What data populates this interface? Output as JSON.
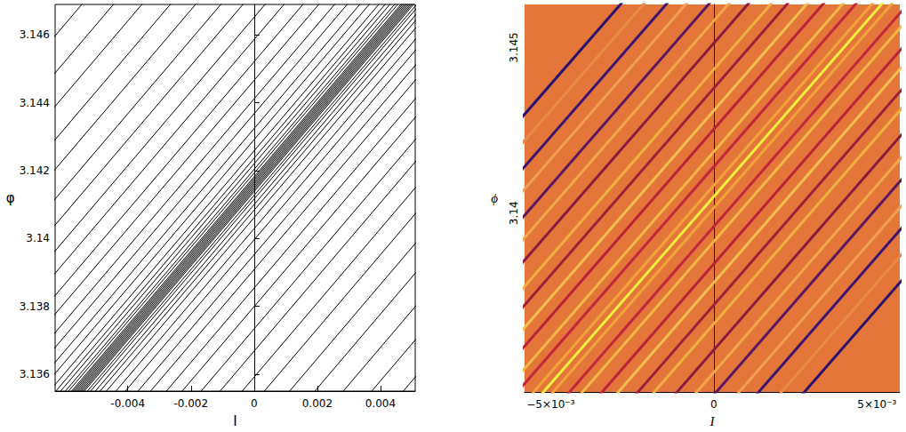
{
  "chart_data": [
    {
      "type": "line",
      "x_label": "I",
      "y_label": "φ",
      "xlim": [
        -0.0063,
        0.0051
      ],
      "ylim": [
        3.1355,
        3.1469
      ],
      "xticks": [
        -0.004,
        -0.002,
        0,
        0.002,
        0.004
      ],
      "yticks": [
        3.136,
        3.138,
        3.14,
        3.142,
        3.144,
        3.146
      ],
      "color": "#000000",
      "grid": false,
      "lines": [
        [
          [
            -0.0064,
            3.1346
          ],
          [
            0.0064,
            3.1486
          ]
        ],
        [
          [
            -0.00635,
            3.1346
          ],
          [
            0.00645,
            3.1486
          ]
        ],
        [
          [
            -0.00645,
            3.1346
          ],
          [
            0.00635,
            3.1486
          ]
        ],
        [
          [
            -0.0063,
            3.1346
          ],
          [
            0.0065,
            3.1486
          ]
        ],
        [
          [
            -0.0065,
            3.1346
          ],
          [
            0.0063,
            3.1486
          ]
        ],
        [
          [
            -0.00625,
            3.1346
          ],
          [
            0.00655,
            3.1486
          ]
        ],
        [
          [
            -0.00655,
            3.1346
          ],
          [
            0.00625,
            3.1486
          ]
        ],
        [
          [
            -0.0062,
            3.1346
          ],
          [
            0.0066,
            3.1486
          ]
        ],
        [
          [
            -0.0066,
            3.1346
          ],
          [
            0.0062,
            3.1486
          ]
        ],
        [
          [
            -0.0061,
            3.1346
          ],
          [
            0.0067,
            3.1486
          ]
        ],
        [
          [
            -0.0067,
            3.1346
          ],
          [
            0.0061,
            3.1486
          ]
        ],
        [
          [
            -0.006,
            3.1346
          ],
          [
            0.0068,
            3.1486
          ]
        ],
        [
          [
            -0.0068,
            3.1346
          ],
          [
            0.006,
            3.1486
          ]
        ],
        [
          [
            -0.00585,
            3.1346
          ],
          [
            0.00695,
            3.1486
          ]
        ],
        [
          [
            -0.00695,
            3.1346
          ],
          [
            0.00585,
            3.1486
          ]
        ],
        [
          [
            -0.0057,
            3.1346
          ],
          [
            0.0071,
            3.1486
          ]
        ],
        [
          [
            -0.0071,
            3.1346
          ],
          [
            0.0057,
            3.1486
          ]
        ],
        [
          [
            -0.0055,
            3.1346
          ],
          [
            0.0073,
            3.1486
          ]
        ],
        [
          [
            -0.0073,
            3.1346
          ],
          [
            0.0055,
            3.1486
          ]
        ],
        [
          [
            -0.0052,
            3.1346
          ],
          [
            0.0076,
            3.1486
          ]
        ],
        [
          [
            -0.0076,
            3.1346
          ],
          [
            0.0052,
            3.1486
          ]
        ],
        [
          [
            -0.0049,
            3.1346
          ],
          [
            0.0079,
            3.1486
          ]
        ],
        [
          [
            -0.0079,
            3.1346
          ],
          [
            0.0049,
            3.1486
          ]
        ],
        [
          [
            -0.0045,
            3.1346
          ],
          [
            0.0083,
            3.1486
          ]
        ],
        [
          [
            -0.0083,
            3.1346
          ],
          [
            0.0045,
            3.1486
          ]
        ],
        [
          [
            -0.0041,
            3.1346
          ],
          [
            0.0087,
            3.1486
          ]
        ],
        [
          [
            -0.0087,
            3.1346
          ],
          [
            0.0041,
            3.1486
          ]
        ],
        [
          [
            -0.0036,
            3.1346
          ],
          [
            0.0092,
            3.1486
          ]
        ],
        [
          [
            -0.0092,
            3.1346
          ],
          [
            0.0036,
            3.1486
          ]
        ],
        [
          [
            -0.0031,
            3.1346
          ],
          [
            0.0097,
            3.1486
          ]
        ],
        [
          [
            -0.0097,
            3.1346
          ],
          [
            0.0031,
            3.1486
          ]
        ],
        [
          [
            -0.0025,
            3.1346
          ],
          [
            0.0103,
            3.1486
          ]
        ],
        [
          [
            -0.0103,
            3.1346
          ],
          [
            0.0025,
            3.1486
          ]
        ],
        [
          [
            -0.0019,
            3.1346
          ],
          [
            0.0109,
            3.1486
          ]
        ],
        [
          [
            -0.0109,
            3.1346
          ],
          [
            0.0019,
            3.1486
          ]
        ],
        [
          [
            -0.0012,
            3.1346
          ],
          [
            0.0116,
            3.1486
          ]
        ],
        [
          [
            -0.0116,
            3.1346
          ],
          [
            0.0012,
            3.1486
          ]
        ],
        [
          [
            -0.0005,
            3.1346
          ],
          [
            0.0123,
            3.1486
          ]
        ],
        [
          [
            -0.0123,
            3.1346
          ],
          [
            0.0005,
            3.1486
          ]
        ],
        [
          [
            0.0003,
            3.1346
          ],
          [
            0.0131,
            3.1486
          ]
        ],
        [
          [
            -0.0131,
            3.1346
          ],
          [
            -0.0003,
            3.1486
          ]
        ],
        [
          [
            0.0011,
            3.1346
          ],
          [
            0.0139,
            3.1486
          ]
        ],
        [
          [
            -0.0139,
            3.1346
          ],
          [
            -0.0011,
            3.1486
          ]
        ],
        [
          [
            0.002,
            3.1346
          ],
          [
            0.0148,
            3.1486
          ]
        ],
        [
          [
            -0.0148,
            3.1346
          ],
          [
            -0.002,
            3.1486
          ]
        ],
        [
          [
            0.0029,
            3.1346
          ],
          [
            0.0157,
            3.1486
          ]
        ],
        [
          [
            -0.0157,
            3.1346
          ],
          [
            -0.0029,
            3.1486
          ]
        ],
        [
          [
            0.0039,
            3.1346
          ],
          [
            0.0167,
            3.1486
          ]
        ],
        [
          [
            -0.0167,
            3.1346
          ],
          [
            -0.0039,
            3.1486
          ]
        ],
        [
          [
            -0.0176,
            3.1346
          ],
          [
            -0.0048,
            3.1486
          ]
        ]
      ]
    },
    {
      "type": "line",
      "x_label": "I",
      "y_label": "ϕ",
      "xlim": [
        -0.0058,
        0.0057
      ],
      "ylim": [
        3.1346,
        3.1463
      ],
      "xticks": [
        {
          "value": -0.005,
          "label": "−5×10⁻³"
        },
        0,
        {
          "value": 0.005,
          "label": "5×10⁻³"
        }
      ],
      "yticks": [
        3.14,
        3.145
      ],
      "color": "#e4763a",
      "grid": false,
      "lines": [
        {
          "color": "#2a1070",
          "points": [
            [
              0.0018,
              3.1335
            ],
            [
              0.0142,
              3.1475
            ]
          ]
        },
        {
          "color": "#2a1070",
          "points": [
            [
              -0.0142,
              3.1335
            ],
            [
              -0.0018,
              3.1475
            ]
          ]
        },
        {
          "color": "#e88a4a",
          "points": [
            [
              0.0011,
              3.1335
            ],
            [
              0.0135,
              3.1475
            ]
          ]
        },
        {
          "color": "#e88a4a",
          "points": [
            [
              -0.0135,
              3.1335
            ],
            [
              -0.0011,
              3.1475
            ]
          ]
        },
        {
          "color": "#3a1470",
          "points": [
            [
              0.0004,
              3.1335
            ],
            [
              0.0128,
              3.1475
            ]
          ]
        },
        {
          "color": "#3a1470",
          "points": [
            [
              -0.0128,
              3.1335
            ],
            [
              -0.0004,
              3.1475
            ]
          ]
        },
        {
          "color": "#f0a050",
          "points": [
            [
              -0.0002,
              3.1335
            ],
            [
              0.0122,
              3.1475
            ]
          ]
        },
        {
          "color": "#f0a050",
          "points": [
            [
              -0.0122,
              3.1335
            ],
            [
              0.0002,
              3.1475
            ]
          ]
        },
        {
          "color": "#5a1660",
          "points": [
            [
              -0.0009,
              3.1335
            ],
            [
              0.0115,
              3.1475
            ]
          ]
        },
        {
          "color": "#5a1660",
          "points": [
            [
              -0.0115,
              3.1335
            ],
            [
              0.0009,
              3.1475
            ]
          ]
        },
        {
          "color": "#f0a848",
          "points": [
            [
              -0.0015,
              3.1335
            ],
            [
              0.0109,
              3.1475
            ]
          ]
        },
        {
          "color": "#f0a848",
          "points": [
            [
              -0.0109,
              3.1335
            ],
            [
              0.0015,
              3.1475
            ]
          ]
        },
        {
          "color": "#8a1a40",
          "points": [
            [
              -0.0021,
              3.1335
            ],
            [
              0.0103,
              3.1475
            ]
          ]
        },
        {
          "color": "#8a1a40",
          "points": [
            [
              -0.0103,
              3.1335
            ],
            [
              0.0021,
              3.1475
            ]
          ]
        },
        {
          "color": "#f0b040",
          "points": [
            [
              -0.0028,
              3.1335
            ],
            [
              0.0096,
              3.1475
            ]
          ]
        },
        {
          "color": "#f0b040",
          "points": [
            [
              -0.0096,
              3.1335
            ],
            [
              0.0028,
              3.1475
            ]
          ]
        },
        {
          "color": "#a01e3c",
          "points": [
            [
              -0.0033,
              3.1335
            ],
            [
              0.0091,
              3.1475
            ]
          ]
        },
        {
          "color": "#a01e3c",
          "points": [
            [
              -0.0091,
              3.1335
            ],
            [
              0.0033,
              3.1475
            ]
          ]
        },
        {
          "color": "#f2c14e",
          "points": [
            [
              -0.0039,
              3.1335
            ],
            [
              0.0085,
              3.1475
            ]
          ]
        },
        {
          "color": "#f2c14e",
          "points": [
            [
              -0.0085,
              3.1335
            ],
            [
              0.0039,
              3.1475
            ]
          ]
        },
        {
          "color": "#b8233a",
          "points": [
            [
              -0.0044,
              3.1335
            ],
            [
              0.008,
              3.1475
            ]
          ]
        },
        {
          "color": "#b8233a",
          "points": [
            [
              -0.008,
              3.1335
            ],
            [
              0.0044,
              3.1475
            ]
          ]
        },
        {
          "color": "#f3b845",
          "points": [
            [
              -0.005,
              3.1335
            ],
            [
              0.0074,
              3.1475
            ]
          ]
        },
        {
          "color": "#f3b845",
          "points": [
            [
              -0.0074,
              3.1335
            ],
            [
              0.005,
              3.1475
            ]
          ]
        },
        {
          "color": "#c2283c",
          "points": [
            [
              -0.0054,
              3.1335
            ],
            [
              0.007,
              3.1475
            ]
          ]
        },
        {
          "color": "#c2283c",
          "points": [
            [
              -0.007,
              3.1335
            ],
            [
              0.0054,
              3.1475
            ]
          ]
        },
        {
          "color": "#f2a23a",
          "points": [
            [
              -0.0059,
              3.1335
            ],
            [
              0.0065,
              3.1475
            ]
          ]
        },
        {
          "color": "#f2a23a",
          "points": [
            [
              -0.0065,
              3.1335
            ],
            [
              0.0059,
              3.1475
            ]
          ]
        },
        {
          "color": "#f4f03c",
          "points": [
            [
              -0.0062,
              3.1335
            ],
            [
              0.0062,
              3.1475
            ]
          ]
        }
      ]
    }
  ]
}
